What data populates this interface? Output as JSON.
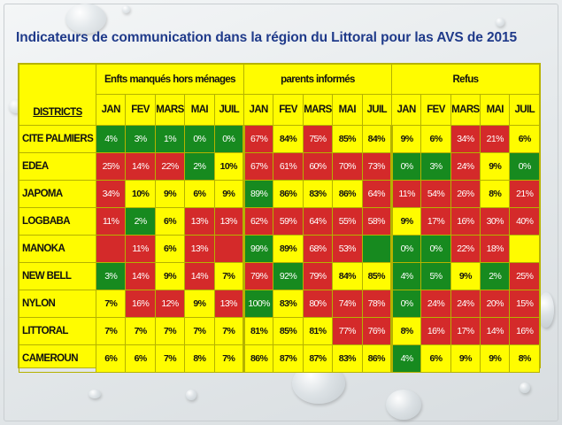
{
  "title": "Indicateurs de communication dans la région du Littoral pour las AVS de 2015",
  "headers": {
    "districts": "DISTRICTS",
    "groups": [
      "Enfts manqués hors ménages",
      "parents informés",
      "Refus"
    ],
    "months": [
      "JAN",
      "FEV",
      "MARS",
      "MAI",
      "JUIL"
    ]
  },
  "colors": {
    "yellow": "#fffc00",
    "red": "#d42a2a",
    "green": "#178a1f"
  },
  "rows": [
    {
      "district": "CITE PALMIERS",
      "values": [
        "4%",
        "3%",
        "1%",
        "0%",
        "0%",
        "67%",
        "84%",
        "75%",
        "85%",
        "84%",
        "9%",
        "6%",
        "34%",
        "21%",
        "6%"
      ],
      "colors": [
        "g",
        "g",
        "g",
        "g",
        "g",
        "r",
        "y",
        "r",
        "y",
        "y",
        "y",
        "y",
        "r",
        "r",
        "y"
      ]
    },
    {
      "district": "EDEA",
      "values": [
        "25%",
        "14%",
        "22%",
        "2%",
        "10%",
        "67%",
        "61%",
        "60%",
        "70%",
        "73%",
        "0%",
        "3%",
        "24%",
        "9%",
        "0%"
      ],
      "colors": [
        "r",
        "r",
        "r",
        "g",
        "y",
        "r",
        "r",
        "r",
        "r",
        "r",
        "g",
        "g",
        "r",
        "y",
        "g"
      ]
    },
    {
      "district": "JAPOMA",
      "values": [
        "34%",
        "10%",
        "9%",
        "6%",
        "9%",
        "89%",
        "86%",
        "83%",
        "86%",
        "64%",
        "11%",
        "54%",
        "26%",
        "8%",
        "21%"
      ],
      "colors": [
        "r",
        "y",
        "y",
        "y",
        "y",
        "g",
        "y",
        "y",
        "y",
        "r",
        "r",
        "r",
        "r",
        "y",
        "r"
      ]
    },
    {
      "district": "LOGBABA",
      "values": [
        "11%",
        "2%",
        "6%",
        "13%",
        "13%",
        "62%",
        "59%",
        "64%",
        "55%",
        "58%",
        "9%",
        "17%",
        "16%",
        "30%",
        "40%"
      ],
      "colors": [
        "r",
        "g",
        "y",
        "r",
        "r",
        "r",
        "r",
        "r",
        "r",
        "r",
        "y",
        "r",
        "r",
        "r",
        "r"
      ]
    },
    {
      "district": "MANOKA",
      "values": [
        "",
        "11%",
        "6%",
        "13%",
        "",
        "99%",
        "89%",
        "68%",
        "53%",
        "",
        "0%",
        "0%",
        "22%",
        "18%",
        ""
      ],
      "colors": [
        "r",
        "r",
        "y",
        "r",
        "r",
        "g",
        "y",
        "r",
        "r",
        "g",
        "g",
        "g",
        "r",
        "r",
        "y"
      ]
    },
    {
      "district": "NEW BELL",
      "values": [
        "3%",
        "14%",
        "9%",
        "14%",
        "7%",
        "79%",
        "92%",
        "79%",
        "84%",
        "85%",
        "4%",
        "5%",
        "9%",
        "2%",
        "25%"
      ],
      "colors": [
        "g",
        "r",
        "y",
        "r",
        "y",
        "r",
        "g",
        "r",
        "y",
        "y",
        "g",
        "g",
        "y",
        "g",
        "r"
      ]
    },
    {
      "district": "NYLON",
      "values": [
        "7%",
        "16%",
        "12%",
        "9%",
        "13%",
        "100%",
        "83%",
        "80%",
        "74%",
        "78%",
        "0%",
        "24%",
        "24%",
        "20%",
        "15%"
      ],
      "colors": [
        "y",
        "r",
        "r",
        "y",
        "r",
        "g",
        "y",
        "r",
        "r",
        "r",
        "g",
        "r",
        "r",
        "r",
        "r"
      ]
    },
    {
      "district": "LITTORAL",
      "values": [
        "7%",
        "7%",
        "7%",
        "7%",
        "7%",
        "81%",
        "85%",
        "81%",
        "77%",
        "76%",
        "8%",
        "16%",
        "17%",
        "14%",
        "16%"
      ],
      "colors": [
        "y",
        "y",
        "y",
        "y",
        "y",
        "y",
        "y",
        "y",
        "r",
        "r",
        "y",
        "r",
        "r",
        "r",
        "r"
      ]
    },
    {
      "district": "CAMEROUN",
      "values": [
        "6%",
        "6%",
        "7%",
        "8%",
        "7%",
        "86%",
        "87%",
        "87%",
        "83%",
        "86%",
        "4%",
        "6%",
        "9%",
        "9%",
        "8%"
      ],
      "colors": [
        "y",
        "y",
        "y",
        "y",
        "y",
        "y",
        "y",
        "y",
        "y",
        "y",
        "g",
        "y",
        "y",
        "y",
        "y"
      ]
    }
  ]
}
